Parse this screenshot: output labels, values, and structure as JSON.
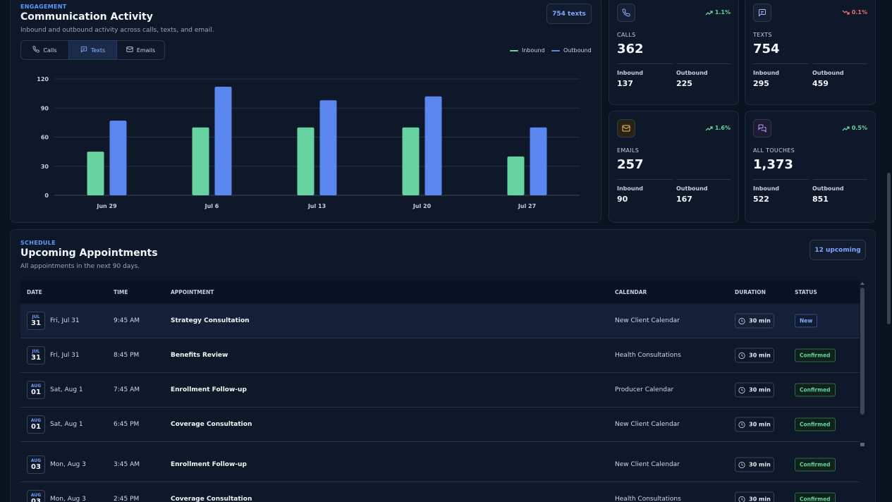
{
  "engagement": {
    "eyebrow": "ENGAGEMENT",
    "title": "Communication Activity",
    "subtitle": "Inbound and outbound activity across calls, texts, and email.",
    "badge": "754 texts",
    "tabs": [
      {
        "label": "Calls",
        "icon": "phone-icon"
      },
      {
        "label": "Texts",
        "icon": "message-icon",
        "active": true
      },
      {
        "label": "Emails",
        "icon": "mail-icon"
      }
    ],
    "legend": {
      "inbound": "Inbound",
      "outbound": "Outbound"
    }
  },
  "chart_data": {
    "type": "bar",
    "categories": [
      "Jun 29",
      "Jul 6",
      "Jul 13",
      "Jul 20",
      "Jul 27"
    ],
    "series": [
      {
        "name": "Inbound",
        "values": [
          45,
          70,
          70,
          70,
          40
        ],
        "color": "#67d3a0"
      },
      {
        "name": "Outbound",
        "values": [
          77,
          112,
          98,
          102,
          70
        ],
        "color": "#5b86f0"
      }
    ],
    "yticks": [
      "0",
      "30",
      "60",
      "90",
      "120"
    ],
    "ylim": [
      0,
      120
    ],
    "grid": true,
    "legend_position": "top-right"
  },
  "stats": [
    {
      "label": "CALLS",
      "value": "362",
      "trend": "1.1%",
      "trend_dir": "up",
      "icon": "phone-icon",
      "inbound": "137",
      "outbound": "225"
    },
    {
      "label": "TEXTS",
      "value": "754",
      "trend": "0.1%",
      "trend_dir": "down",
      "icon": "message-icon",
      "inbound": "295",
      "outbound": "459"
    },
    {
      "label": "EMAILS",
      "value": "257",
      "trend": "1.6%",
      "trend_dir": "up",
      "icon": "mail-icon",
      "inbound": "90",
      "outbound": "167"
    },
    {
      "label": "ALL TOUCHES",
      "value": "1,373",
      "trend": "0.5%",
      "trend_dir": "up",
      "icon": "chat-icon",
      "inbound": "522",
      "outbound": "851"
    }
  ],
  "stat_sub_labels": {
    "inbound": "Inbound",
    "outbound": "Outbound"
  },
  "schedule": {
    "eyebrow": "SCHEDULE",
    "title": "Upcoming Appointments",
    "subtitle": "All appointments in the next 90 days.",
    "badge": "12 upcoming",
    "columns": [
      "DATE",
      "TIME",
      "APPOINTMENT",
      "CALENDAR",
      "DURATION",
      "STATUS"
    ],
    "rows": [
      {
        "month": "JUL",
        "day": "31",
        "date": "Fri, Jul 31",
        "time": "9:45 AM",
        "appointment": "Strategy Consultation",
        "calendar": "New Client Calendar",
        "duration": "30 min",
        "status": "New"
      },
      {
        "month": "JUL",
        "day": "31",
        "date": "Fri, Jul 31",
        "time": "8:45 PM",
        "appointment": "Benefits Review",
        "calendar": "Health Consultations",
        "duration": "30 min",
        "status": "Confirmed"
      },
      {
        "month": "AUG",
        "day": "01",
        "date": "Sat, Aug 1",
        "time": "7:45 AM",
        "appointment": "Enrollment Follow-up",
        "calendar": "Producer Calendar",
        "duration": "30 min",
        "status": "Confirmed"
      },
      {
        "month": "AUG",
        "day": "01",
        "date": "Sat, Aug 1",
        "time": "6:45 PM",
        "appointment": "Coverage Consultation",
        "calendar": "New Client Calendar",
        "duration": "30 min",
        "status": "Confirmed"
      },
      {
        "month": "AUG",
        "day": "03",
        "date": "Mon, Aug 3",
        "time": "3:45 AM",
        "appointment": "Enrollment Follow-up",
        "calendar": "New Client Calendar",
        "duration": "30 min",
        "status": "Confirmed"
      },
      {
        "month": "AUG",
        "day": "03",
        "date": "Mon, Aug 3",
        "time": "2:45 PM",
        "appointment": "Coverage Consultation",
        "calendar": "Health Consultations",
        "duration": "30 min",
        "status": "Confirmed"
      }
    ]
  },
  "colors": {
    "accent": "#5b9bff",
    "inbound": "#67d3a0",
    "outbound": "#5b86f0",
    "up": "#5fd79c",
    "down": "#f26d6d"
  }
}
